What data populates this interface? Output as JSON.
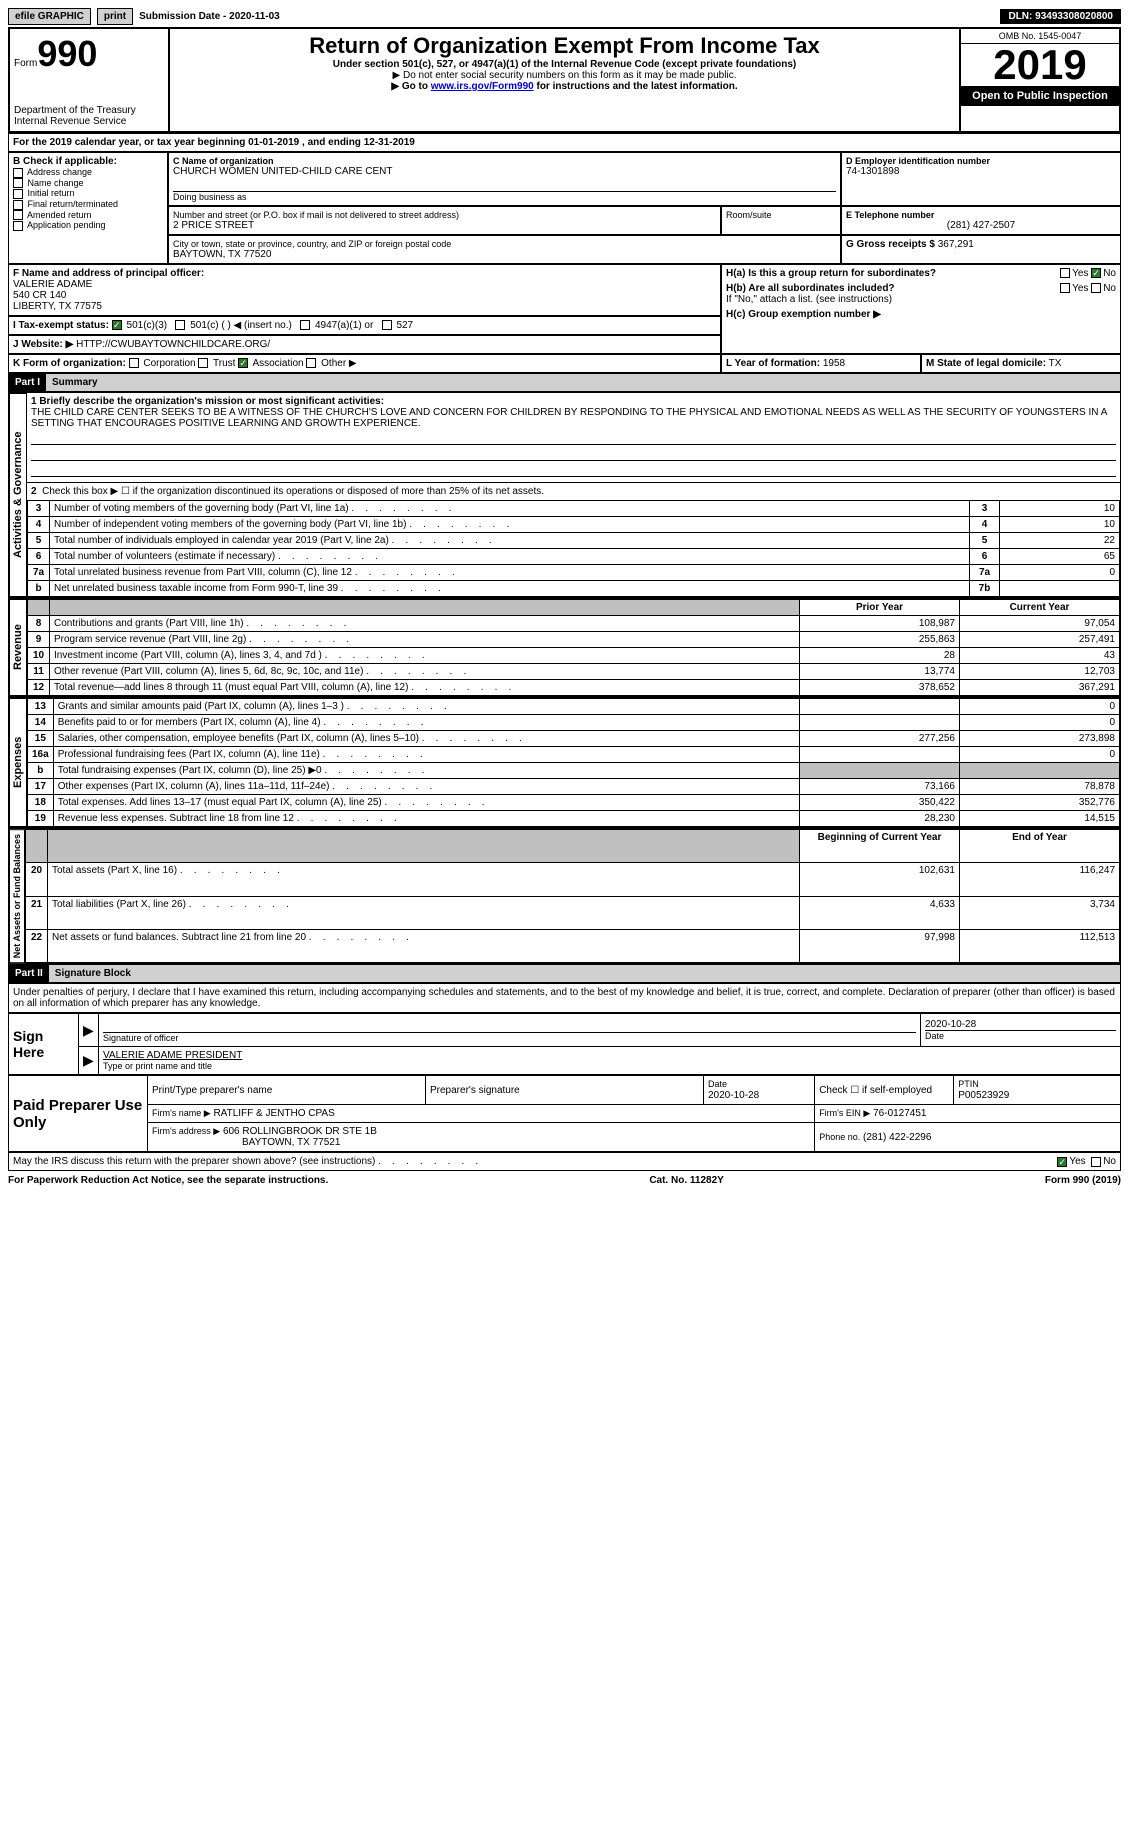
{
  "topbar": {
    "efile": "efile GRAPHIC",
    "print": "print",
    "submission": "Submission Date - 2020-11-03",
    "dln": "DLN: 93493308020800"
  },
  "header": {
    "form": "Form",
    "form_no": "990",
    "dept": "Department of the Treasury\nInternal Revenue Service",
    "title": "Return of Organization Exempt From Income Tax",
    "subtitle": "Under section 501(c), 527, or 4947(a)(1) of the Internal Revenue Code (except private foundations)",
    "note1": "▶ Do not enter social security numbers on this form as it may be made public.",
    "note2_pre": "▶ Go to ",
    "note2_link": "www.irs.gov/Form990",
    "note2_post": " for instructions and the latest information.",
    "omb": "OMB No. 1545-0047",
    "year": "2019",
    "public": "Open to Public Inspection"
  },
  "period": {
    "label": "For the 2019 calendar year, or tax year beginning ",
    "begin": "01-01-2019",
    "mid": " , and ending ",
    "end": "12-31-2019"
  },
  "sectionB": {
    "label": "B Check if applicable:",
    "items": [
      "Address change",
      "Name change",
      "Initial return",
      "Final return/terminated",
      "Amended return",
      "Application pending"
    ]
  },
  "sectionC": {
    "name_label": "C Name of organization",
    "name": "CHURCH WOMEN UNITED-CHILD CARE CENT",
    "dba_label": "Doing business as",
    "street_label": "Number and street (or P.O. box if mail is not delivered to street address)",
    "street": "2 PRICE STREET",
    "room_label": "Room/suite",
    "city_label": "City or town, state or province, country, and ZIP or foreign postal code",
    "city": "BAYTOWN, TX  77520"
  },
  "sectionD": {
    "label": "D Employer identification number",
    "ein": "74-1301898"
  },
  "sectionE": {
    "label": "E Telephone number",
    "phone": "(281) 427-2507"
  },
  "sectionG": {
    "label": "G Gross receipts $",
    "amount": "367,291"
  },
  "sectionF": {
    "label": "F Name and address of principal officer:",
    "name": "VALERIE ADAME",
    "addr1": "540 CR 140",
    "addr2": "LIBERTY, TX  77575"
  },
  "sectionH": {
    "ha": "H(a)  Is this a group return for subordinates?",
    "hb": "H(b)  Are all subordinates included?",
    "hnote": "If \"No,\" attach a list. (see instructions)",
    "hc": "H(c)  Group exemption number ▶",
    "yes": "Yes",
    "no": "No"
  },
  "sectionI": {
    "label": "I  Tax-exempt status:",
    "o1": "501(c)(3)",
    "o2": "501(c) (   ) ◀ (insert no.)",
    "o3": "4947(a)(1) or",
    "o4": "527"
  },
  "sectionJ": {
    "label": "J  Website: ▶",
    "url": "HTTP://CWUBAYTOWNCHILDCARE.ORG/"
  },
  "sectionK": {
    "label": "K Form of organization:",
    "o1": "Corporation",
    "o2": "Trust",
    "o3": "Association",
    "o4": "Other ▶"
  },
  "sectionL": {
    "label": "L Year of formation:",
    "val": "1958"
  },
  "sectionM": {
    "label": "M State of legal domicile:",
    "val": "TX"
  },
  "part1": {
    "header": "Part I",
    "title": "Summary",
    "mission_label": "1  Briefly describe the organization's mission or most significant activities:",
    "mission": "THE CHILD CARE CENTER SEEKS TO BE A WITNESS OF THE CHURCH'S LOVE AND CONCERN FOR CHILDREN BY RESPONDING TO THE PHYSICAL AND EMOTIONAL NEEDS AS WELL AS THE SECURITY OF YOUNGSTERS IN A SETTING THAT ENCOURAGES POSITIVE LEARNING AND GROWTH EXPERIENCE.",
    "line2": "Check this box ▶ ☐ if the organization discontinued its operations or disposed of more than 25% of its net assets."
  },
  "governance": {
    "label": "Activities & Governance",
    "rows": [
      {
        "n": "3",
        "text": "Number of voting members of the governing body (Part VI, line 1a)",
        "box": "3",
        "val": "10"
      },
      {
        "n": "4",
        "text": "Number of independent voting members of the governing body (Part VI, line 1b)",
        "box": "4",
        "val": "10"
      },
      {
        "n": "5",
        "text": "Total number of individuals employed in calendar year 2019 (Part V, line 2a)",
        "box": "5",
        "val": "22"
      },
      {
        "n": "6",
        "text": "Total number of volunteers (estimate if necessary)",
        "box": "6",
        "val": "65"
      },
      {
        "n": "7a",
        "text": "Total unrelated business revenue from Part VIII, column (C), line 12",
        "box": "7a",
        "val": "0"
      },
      {
        "n": "b",
        "text": "Net unrelated business taxable income from Form 990-T, line 39",
        "box": "7b",
        "val": ""
      }
    ]
  },
  "columns": {
    "prior": "Prior Year",
    "current": "Current Year"
  },
  "revenue": {
    "label": "Revenue",
    "rows": [
      {
        "n": "8",
        "text": "Contributions and grants (Part VIII, line 1h)",
        "prior": "108,987",
        "current": "97,054"
      },
      {
        "n": "9",
        "text": "Program service revenue (Part VIII, line 2g)",
        "prior": "255,863",
        "current": "257,491"
      },
      {
        "n": "10",
        "text": "Investment income (Part VIII, column (A), lines 3, 4, and 7d )",
        "prior": "28",
        "current": "43"
      },
      {
        "n": "11",
        "text": "Other revenue (Part VIII, column (A), lines 5, 6d, 8c, 9c, 10c, and 11e)",
        "prior": "13,774",
        "current": "12,703"
      },
      {
        "n": "12",
        "text": "Total revenue—add lines 8 through 11 (must equal Part VIII, column (A), line 12)",
        "prior": "378,652",
        "current": "367,291"
      }
    ]
  },
  "expenses": {
    "label": "Expenses",
    "rows": [
      {
        "n": "13",
        "text": "Grants and similar amounts paid (Part IX, column (A), lines 1–3 )",
        "prior": "",
        "current": "0"
      },
      {
        "n": "14",
        "text": "Benefits paid to or for members (Part IX, column (A), line 4)",
        "prior": "",
        "current": "0"
      },
      {
        "n": "15",
        "text": "Salaries, other compensation, employee benefits (Part IX, column (A), lines 5–10)",
        "prior": "277,256",
        "current": "273,898"
      },
      {
        "n": "16a",
        "text": "Professional fundraising fees (Part IX, column (A), line 11e)",
        "prior": "",
        "current": "0"
      },
      {
        "n": "b",
        "text": "Total fundraising expenses (Part IX, column (D), line 25) ▶0",
        "prior": "shade",
        "current": "shade"
      },
      {
        "n": "17",
        "text": "Other expenses (Part IX, column (A), lines 11a–11d, 11f–24e)",
        "prior": "73,166",
        "current": "78,878"
      },
      {
        "n": "18",
        "text": "Total expenses. Add lines 13–17 (must equal Part IX, column (A), line 25)",
        "prior": "350,422",
        "current": "352,776"
      },
      {
        "n": "19",
        "text": "Revenue less expenses. Subtract line 18 from line 12",
        "prior": "28,230",
        "current": "14,515"
      }
    ]
  },
  "columns2": {
    "begin": "Beginning of Current Year",
    "end": "End of Year"
  },
  "netassets": {
    "label": "Net Assets or Fund Balances",
    "rows": [
      {
        "n": "20",
        "text": "Total assets (Part X, line 16)",
        "begin": "102,631",
        "end": "116,247"
      },
      {
        "n": "21",
        "text": "Total liabilities (Part X, line 26)",
        "begin": "4,633",
        "end": "3,734"
      },
      {
        "n": "22",
        "text": "Net assets or fund balances. Subtract line 21 from line 20",
        "begin": "97,998",
        "end": "112,513"
      }
    ]
  },
  "part2": {
    "header": "Part II",
    "title": "Signature Block",
    "declaration": "Under penalties of perjury, I declare that I have examined this return, including accompanying schedules and statements, and to the best of my knowledge and belief, it is true, correct, and complete. Declaration of preparer (other than officer) is based on all information of which preparer has any knowledge."
  },
  "sign": {
    "here": "Sign Here",
    "sig_label": "Signature of officer",
    "date": "2020-10-28",
    "date_label": "Date",
    "name": "VALERIE ADAME  PRESIDENT",
    "name_label": "Type or print name and title"
  },
  "preparer": {
    "here": "Paid Preparer Use Only",
    "c1": "Print/Type preparer's name",
    "c2": "Preparer's signature",
    "c3": "Date",
    "c3v": "2020-10-28",
    "c4": "Check ☐ if self-employed",
    "c5": "PTIN",
    "c5v": "P00523929",
    "firm_label": "Firm's name    ▶",
    "firm": "RATLIFF & JENTHO CPAS",
    "ein_label": "Firm's EIN ▶",
    "ein": "76-0127451",
    "addr_label": "Firm's address ▶",
    "addr": "606 ROLLINGBROOK DR STE 1B",
    "addr2": "BAYTOWN, TX  77521",
    "phone_label": "Phone no.",
    "phone": "(281) 422-2296"
  },
  "discuss": {
    "text": "May the IRS discuss this return with the preparer shown above? (see instructions)",
    "yes": "Yes",
    "no": "No"
  },
  "footer": {
    "left": "For Paperwork Reduction Act Notice, see the separate instructions.",
    "mid": "Cat. No. 11282Y",
    "right_pre": "Form ",
    "right_form": "990",
    "right_post": " (2019)"
  }
}
